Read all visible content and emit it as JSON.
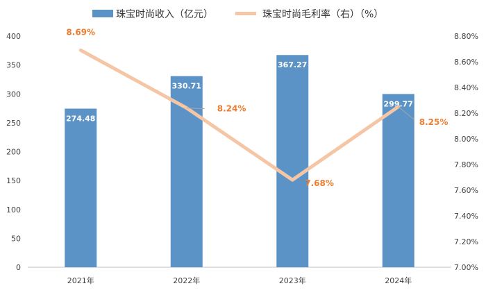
{
  "chart_data": {
    "type": "bar",
    "categories": [
      "2021年",
      "2022年",
      "2023年",
      "2024年"
    ],
    "series": [
      {
        "name": "珠宝时尚收入（亿元）",
        "type": "bar",
        "axis": "left",
        "values": [
          274.48,
          330.71,
          367.27,
          299.77
        ],
        "labels": [
          "274.48",
          "330.71",
          "367.27",
          "299.77"
        ],
        "color": "#5B93C7"
      },
      {
        "name": "珠宝时尚毛利率（右）（%）",
        "type": "line",
        "axis": "right",
        "values": [
          8.69,
          8.24,
          7.68,
          8.25
        ],
        "labels": [
          "8.69%",
          "8.24%",
          "7.68%",
          "8.25%"
        ],
        "color": "#F5C6A5",
        "label_color": "#ED7D31"
      }
    ],
    "y_left": {
      "ylim": [
        0,
        400
      ],
      "ticks": [
        "0",
        "50",
        "100",
        "150",
        "200",
        "250",
        "300",
        "350",
        "400"
      ]
    },
    "y_right": {
      "ylim": [
        7.0,
        8.8
      ],
      "ticks": [
        "7.00%",
        "7.20%",
        "7.40%",
        "7.60%",
        "7.80%",
        "8.00%",
        "8.20%",
        "8.40%",
        "8.60%",
        "8.80%"
      ]
    },
    "grid": false,
    "legend_position": "top"
  }
}
